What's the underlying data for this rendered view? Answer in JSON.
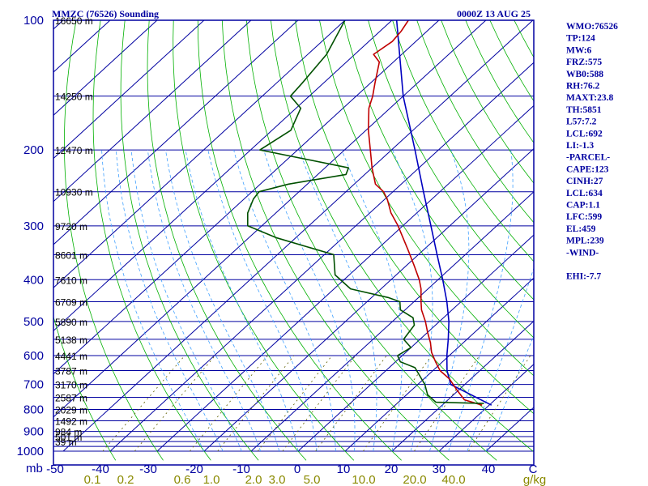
{
  "header": {
    "title": "MMZC (76526) Sounding",
    "datetime": "0000Z 13 AUG 25"
  },
  "indices": [
    "WMO:76526",
    "TP:124",
    "MW:6",
    "FRZ:575",
    "WB0:588",
    "RH:76.2",
    "MAXT:23.8",
    "TH:5851",
    "L57:7.2",
    "LCL:692",
    "LI:-1.3",
    "-PARCEL-",
    "CAPE:123",
    "CINH:27",
    "LCL:634",
    "CAP:1.1",
    "LFC:599",
    "EL:459",
    "MPL:239",
    "-WIND-",
    "",
    "EHI:-7.7"
  ],
  "colors": {
    "frame": "#0000a0",
    "isobar": "#0000a0",
    "isotherm": "#0000a0",
    "dry_adiabat": "#00b000",
    "moist_adiabat": "#40a0ff",
    "mixing_ratio": "#606000",
    "temperature": "#c00000",
    "dewpoint": "#005000",
    "parcel": "#0000c0",
    "axis_text": "#0000a0",
    "mixing_text": "#8a8a00"
  },
  "chart_data": {
    "type": "skew-t",
    "title": "MMZC (76526) Sounding",
    "time": "0000Z 13 AUG 25",
    "pressure_axis_label": "mb",
    "pressure_ticks": [
      100,
      200,
      300,
      400,
      500,
      600,
      700,
      800,
      900,
      1000
    ],
    "isobars": [
      100,
      150,
      200,
      250,
      300,
      350,
      400,
      450,
      500,
      550,
      600,
      650,
      700,
      750,
      800,
      850,
      900,
      925,
      950,
      975,
      1000
    ],
    "temperature_ticks": [
      "-50",
      "-40",
      "-30",
      "-20",
      "-10",
      "0",
      "10",
      "20",
      "30",
      "40",
      "C"
    ],
    "mixing_ratio_labels": [
      "0.1",
      "0.2",
      "0.6",
      "1.0",
      "2.0",
      "3.0",
      "5.0",
      "10.0",
      "20.0",
      "40.0",
      "g/kg"
    ],
    "mixing_ratio_values": [
      0.1,
      0.2,
      0.6,
      1.0,
      2.0,
      3.0,
      5.0,
      10.0,
      20.0,
      40.0
    ],
    "heights": [
      {
        "p": 100,
        "label": "16650 m"
      },
      {
        "p": 150,
        "label": "14250 m"
      },
      {
        "p": 200,
        "label": "12470 m"
      },
      {
        "p": 250,
        "label": "10930 m"
      },
      {
        "p": 300,
        "label": "9720 m"
      },
      {
        "p": 350,
        "label": "8601 m"
      },
      {
        "p": 400,
        "label": "7610 m"
      },
      {
        "p": 450,
        "label": "6709 m"
      },
      {
        "p": 500,
        "label": "5890 m"
      },
      {
        "p": 550,
        "label": "5138 m"
      },
      {
        "p": 600,
        "label": "4441 m"
      },
      {
        "p": 650,
        "label": "3787 m"
      },
      {
        "p": 700,
        "label": "3170 m"
      },
      {
        "p": 750,
        "label": "2587 m"
      },
      {
        "p": 800,
        "label": "2029 m"
      },
      {
        "p": 850,
        "label": "1492 m"
      },
      {
        "p": 900,
        "label": "984 m"
      },
      {
        "p": 925,
        "label": "501 m"
      },
      {
        "p": 950,
        "label": "39 m"
      }
    ],
    "temperature_profile": [
      [
        782,
        28.5
      ],
      [
        760,
        23.5
      ],
      [
        720,
        19.5
      ],
      [
        680,
        15.5
      ],
      [
        650,
        11.5
      ],
      [
        620,
        8.5
      ],
      [
        590,
        5.5
      ],
      [
        560,
        3.0
      ],
      [
        530,
        0.0
      ],
      [
        500,
        -3.0
      ],
      [
        470,
        -6.5
      ],
      [
        450,
        -8.5
      ],
      [
        420,
        -11.5
      ],
      [
        400,
        -14.0
      ],
      [
        370,
        -18.5
      ],
      [
        340,
        -23.5
      ],
      [
        300,
        -31.0
      ],
      [
        280,
        -35.5
      ],
      [
        260,
        -39.5
      ],
      [
        250,
        -42.0
      ],
      [
        240,
        -45.5
      ],
      [
        220,
        -50.0
      ],
      [
        200,
        -54.5
      ],
      [
        180,
        -59.5
      ],
      [
        160,
        -64.5
      ],
      [
        150,
        -66.5
      ],
      [
        140,
        -69.0
      ],
      [
        125,
        -73.0
      ],
      [
        120,
        -76.0
      ],
      [
        112,
        -75.0
      ],
      [
        106,
        -75.5
      ],
      [
        100,
        -76.5
      ]
    ],
    "dewpoint_profile": [
      [
        775,
        28.5
      ],
      [
        770,
        18.0
      ],
      [
        740,
        14.5
      ],
      [
        700,
        11.5
      ],
      [
        640,
        5.5
      ],
      [
        620,
        1.0
      ],
      [
        600,
        -1.0
      ],
      [
        575,
        0.0
      ],
      [
        550,
        -3.5
      ],
      [
        510,
        -4.5
      ],
      [
        490,
        -6.5
      ],
      [
        470,
        -11.0
      ],
      [
        450,
        -13.0
      ],
      [
        440,
        -16.5
      ],
      [
        420,
        -26.5
      ],
      [
        390,
        -33.0
      ],
      [
        350,
        -38.0
      ],
      [
        320,
        -54.0
      ],
      [
        300,
        -63.0
      ],
      [
        280,
        -66.0
      ],
      [
        260,
        -68.0
      ],
      [
        250,
        -68.5
      ],
      [
        240,
        -64.0
      ],
      [
        228,
        -54.0
      ],
      [
        220,
        -55.0
      ],
      [
        200,
        -78.0
      ],
      [
        180,
        -76.0
      ],
      [
        160,
        -79.0
      ],
      [
        150,
        -84.0
      ],
      [
        140,
        -84.5
      ],
      [
        120,
        -86.0
      ],
      [
        100,
        -90.0
      ]
    ],
    "parcel_profile": [
      [
        782,
        30.5
      ],
      [
        700,
        17.0
      ],
      [
        650,
        13.0
      ],
      [
        600,
        9.5
      ],
      [
        550,
        6.0
      ],
      [
        500,
        2.0
      ],
      [
        450,
        -3.0
      ],
      [
        400,
        -9.0
      ],
      [
        350,
        -16.0
      ],
      [
        300,
        -24.0
      ],
      [
        250,
        -33.5
      ],
      [
        200,
        -45.0
      ],
      [
        150,
        -60.0
      ],
      [
        100,
        -79.0
      ]
    ]
  }
}
